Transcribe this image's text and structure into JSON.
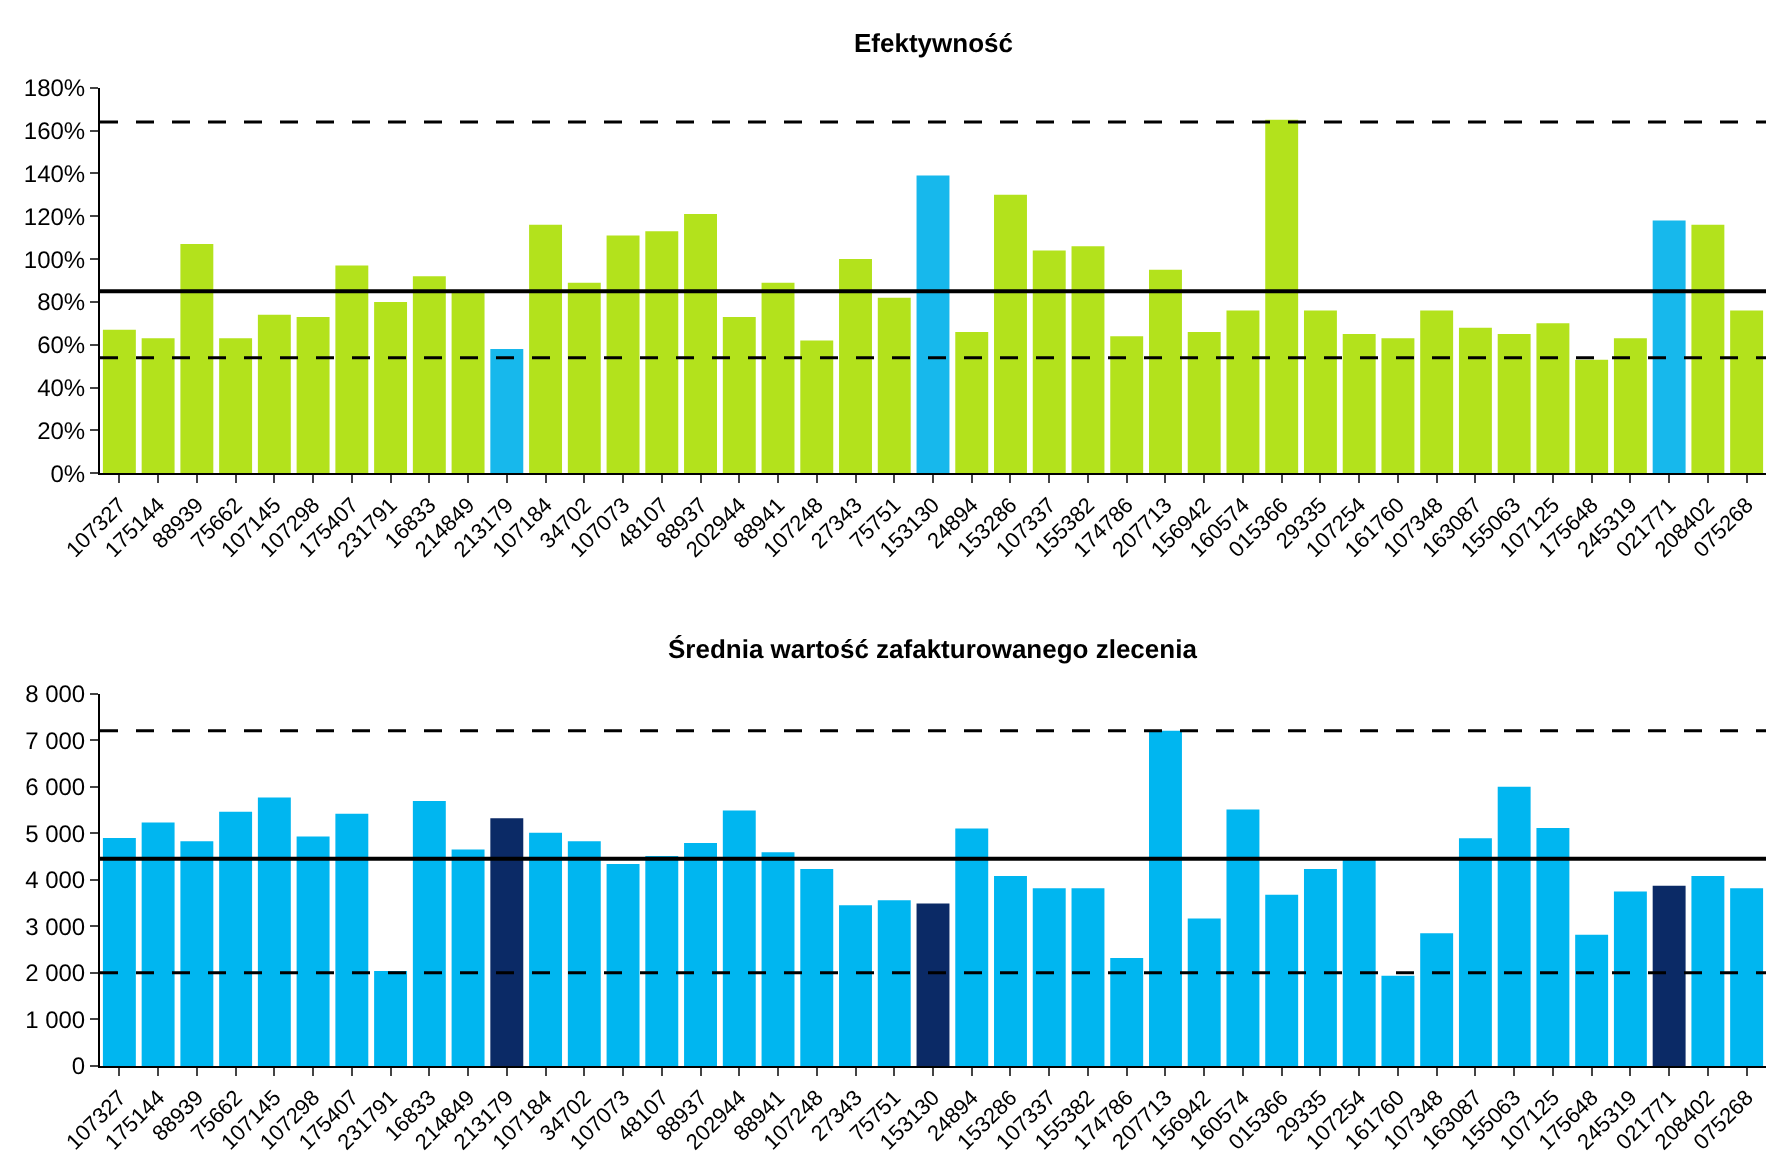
{
  "chart_data": [
    {
      "type": "bar",
      "title": "Efektywność",
      "categories": [
        "107327",
        "175144",
        "88939",
        "75662",
        "107145",
        "107298",
        "175407",
        "231791",
        "16833",
        "214849",
        "213179",
        "107184",
        "34702",
        "107073",
        "48107",
        "88937",
        "202944",
        "88941",
        "107248",
        "27343",
        "75751",
        "153130",
        "24894",
        "153286",
        "107337",
        "155382",
        "174786",
        "207713",
        "156942",
        "160574",
        "015366",
        "29335",
        "107254",
        "161760",
        "107348",
        "163087",
        "155063",
        "107125",
        "175648",
        "245319",
        "021771",
        "208402",
        "075268"
      ],
      "values": [
        67,
        63,
        107,
        63,
        74,
        73,
        97,
        80,
        92,
        85,
        58,
        116,
        89,
        111,
        113,
        121,
        73,
        89,
        62,
        100,
        82,
        139,
        66,
        130,
        104,
        106,
        64,
        95,
        66,
        76,
        165,
        76,
        65,
        63,
        76,
        68,
        65,
        70,
        53,
        63,
        118,
        116,
        76
      ],
      "colors": [
        "#b3e21c",
        "#b3e21c",
        "#b3e21c",
        "#b3e21c",
        "#b3e21c",
        "#b3e21c",
        "#b3e21c",
        "#b3e21c",
        "#b3e21c",
        "#b3e21c",
        "#17b8ec",
        "#b3e21c",
        "#b3e21c",
        "#b3e21c",
        "#b3e21c",
        "#b3e21c",
        "#b3e21c",
        "#b3e21c",
        "#b3e21c",
        "#b3e21c",
        "#b3e21c",
        "#17b8ec",
        "#b3e21c",
        "#b3e21c",
        "#b3e21c",
        "#b3e21c",
        "#b3e21c",
        "#b3e21c",
        "#b3e21c",
        "#b3e21c",
        "#b3e21c",
        "#b3e21c",
        "#b3e21c",
        "#b3e21c",
        "#b3e21c",
        "#b3e21c",
        "#b3e21c",
        "#b3e21c",
        "#b3e21c",
        "#b3e21c",
        "#17b8ec",
        "#b3e21c",
        "#b3e21c"
      ],
      "ylim": [
        0,
        180
      ],
      "yticks": [
        {
          "value": 0,
          "label": "0%"
        },
        {
          "value": 20,
          "label": "20%"
        },
        {
          "value": 40,
          "label": "40%"
        },
        {
          "value": 60,
          "label": "60%"
        },
        {
          "value": 80,
          "label": "80%"
        },
        {
          "value": 100,
          "label": "100%"
        },
        {
          "value": 120,
          "label": "120%"
        },
        {
          "value": 140,
          "label": "140%"
        },
        {
          "value": 160,
          "label": "160%"
        },
        {
          "value": 180,
          "label": "180%"
        }
      ],
      "ref_lines": [
        {
          "axis": "y",
          "value": 164,
          "color": "#000000",
          "line_style": "dashed"
        },
        {
          "axis": "y",
          "value": 85,
          "color": "#000000",
          "line_style": "solid"
        },
        {
          "axis": "y",
          "value": 54,
          "color": "#000000",
          "line_style": "dashed"
        }
      ]
    },
    {
      "type": "bar",
      "title": "Średnia wartość zafakturowanego zlecenia",
      "categories": [
        "107327",
        "175144",
        "88939",
        "75662",
        "107145",
        "107298",
        "175407",
        "231791",
        "16833",
        "214849",
        "213179",
        "107184",
        "34702",
        "107073",
        "48107",
        "88937",
        "202944",
        "88941",
        "107248",
        "27343",
        "75751",
        "153130",
        "24894",
        "153286",
        "107337",
        "155382",
        "174786",
        "207713",
        "156942",
        "160574",
        "015366",
        "29335",
        "107254",
        "161760",
        "107348",
        "163087",
        "155063",
        "107125",
        "175648",
        "245319",
        "021771",
        "208402",
        "075268"
      ],
      "values": [
        4900,
        5230,
        4830,
        5460,
        5770,
        4930,
        5420,
        2040,
        5690,
        4650,
        5320,
        5010,
        4830,
        4340,
        4510,
        4790,
        5490,
        4590,
        4230,
        3450,
        3560,
        3490,
        5100,
        4080,
        3820,
        3820,
        2320,
        7200,
        3170,
        5510,
        3680,
        4230,
        4480,
        1940,
        2850,
        4890,
        6000,
        5110,
        2820,
        3750,
        3870,
        4080,
        3820
      ],
      "colors": [
        "#00b6f0",
        "#00b6f0",
        "#00b6f0",
        "#00b6f0",
        "#00b6f0",
        "#00b6f0",
        "#00b6f0",
        "#00b6f0",
        "#00b6f0",
        "#00b6f0",
        "#0b2a66",
        "#00b6f0",
        "#00b6f0",
        "#00b6f0",
        "#00b6f0",
        "#00b6f0",
        "#00b6f0",
        "#00b6f0",
        "#00b6f0",
        "#00b6f0",
        "#00b6f0",
        "#0b2a66",
        "#00b6f0",
        "#00b6f0",
        "#00b6f0",
        "#00b6f0",
        "#00b6f0",
        "#00b6f0",
        "#00b6f0",
        "#00b6f0",
        "#00b6f0",
        "#00b6f0",
        "#00b6f0",
        "#00b6f0",
        "#00b6f0",
        "#00b6f0",
        "#00b6f0",
        "#00b6f0",
        "#00b6f0",
        "#00b6f0",
        "#0b2a66",
        "#00b6f0",
        "#00b6f0"
      ],
      "ylim": [
        0,
        8000
      ],
      "yticks": [
        {
          "value": 0,
          "label": "0"
        },
        {
          "value": 1000,
          "label": "1 000"
        },
        {
          "value": 2000,
          "label": "2 000"
        },
        {
          "value": 3000,
          "label": "3 000"
        },
        {
          "value": 4000,
          "label": "4 000"
        },
        {
          "value": 5000,
          "label": "5 000"
        },
        {
          "value": 6000,
          "label": "6 000"
        },
        {
          "value": 7000,
          "label": "7 000"
        },
        {
          "value": 8000,
          "label": "8 000"
        }
      ],
      "ref_lines": [
        {
          "axis": "y",
          "value": 7200,
          "color": "#000000",
          "line_style": "dashed"
        },
        {
          "axis": "y",
          "value": 4450,
          "color": "#000000",
          "line_style": "solid"
        },
        {
          "axis": "y",
          "value": 2000,
          "color": "#000000",
          "line_style": "dashed"
        }
      ]
    }
  ]
}
